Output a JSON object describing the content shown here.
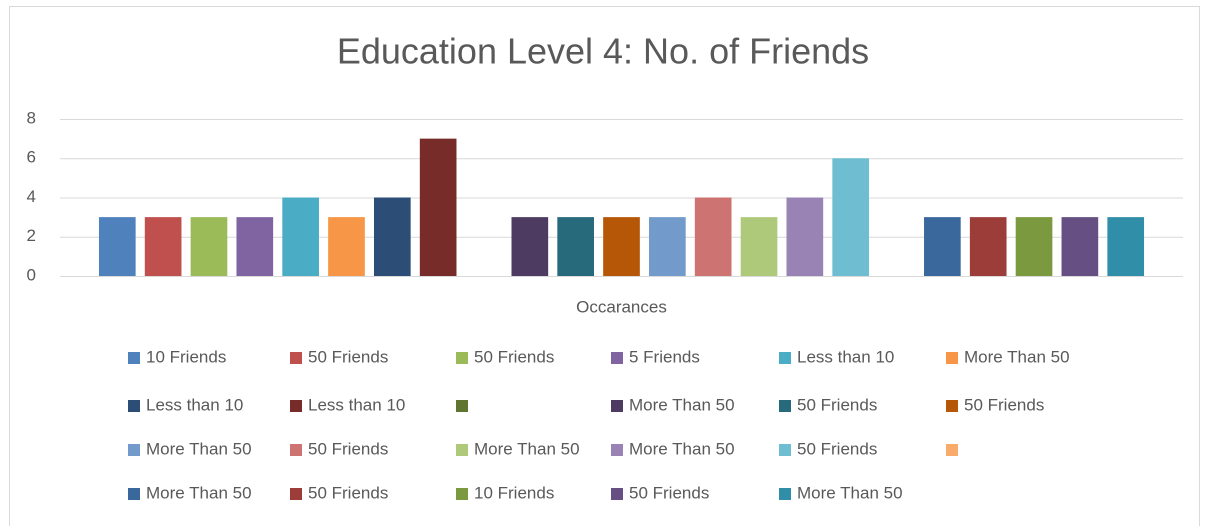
{
  "chart_data": {
    "type": "bar",
    "title": "Education Level 4: No. of Friends",
    "categories": [
      "Occarances"
    ],
    "ylim": [
      0,
      8
    ],
    "yticks": [
      0,
      2,
      4,
      6,
      8
    ],
    "grid": true,
    "legend": "bottom",
    "series": [
      {
        "name": "10 Friends",
        "color": "#4f81bd",
        "values": [
          3
        ]
      },
      {
        "name": "50 Friends",
        "color": "#c0504d",
        "values": [
          3
        ]
      },
      {
        "name": "50 Friends",
        "color": "#9bbb59",
        "values": [
          3
        ]
      },
      {
        "name": "5 Friends",
        "color": "#8064a2",
        "values": [
          3
        ]
      },
      {
        "name": "Less than 10",
        "color": "#4bacc6",
        "values": [
          4
        ]
      },
      {
        "name": "More Than 50",
        "color": "#f79646",
        "values": [
          3
        ]
      },
      {
        "name": "Less than 10",
        "color": "#2c4d75",
        "values": [
          4
        ]
      },
      {
        "name": "Less than 10",
        "color": "#772c2a",
        "values": [
          7
        ]
      },
      {
        "name": null,
        "color": "#5f7530",
        "values": [
          null
        ]
      },
      {
        "name": "More Than 50",
        "color": "#4d3b62",
        "values": [
          3
        ]
      },
      {
        "name": "50 Friends",
        "color": "#276a7c",
        "values": [
          3
        ]
      },
      {
        "name": "50 Friends",
        "color": "#b65708",
        "values": [
          3
        ]
      },
      {
        "name": "More Than 50",
        "color": "#729aca",
        "values": [
          3
        ]
      },
      {
        "name": "50 Friends",
        "color": "#cd7371",
        "values": [
          4
        ]
      },
      {
        "name": "More Than 50",
        "color": "#afc97a",
        "values": [
          3
        ]
      },
      {
        "name": "More Than 50",
        "color": "#9983b5",
        "values": [
          4
        ]
      },
      {
        "name": "50 Friends",
        "color": "#6fbdd1",
        "values": [
          6
        ]
      },
      {
        "name": null,
        "color": "#f9ab6b",
        "values": [
          null
        ]
      },
      {
        "name": "More Than 50",
        "color": "#3a679c",
        "values": [
          3
        ]
      },
      {
        "name": "50 Friends",
        "color": "#9d3d3a",
        "values": [
          3
        ]
      },
      {
        "name": "10 Friends",
        "color": "#7b9a3f",
        "values": [
          3
        ]
      },
      {
        "name": "50 Friends",
        "color": "#664f83",
        "values": [
          3
        ]
      },
      {
        "name": "More Than 50",
        "color": "#318ea8",
        "values": [
          3
        ]
      }
    ]
  }
}
